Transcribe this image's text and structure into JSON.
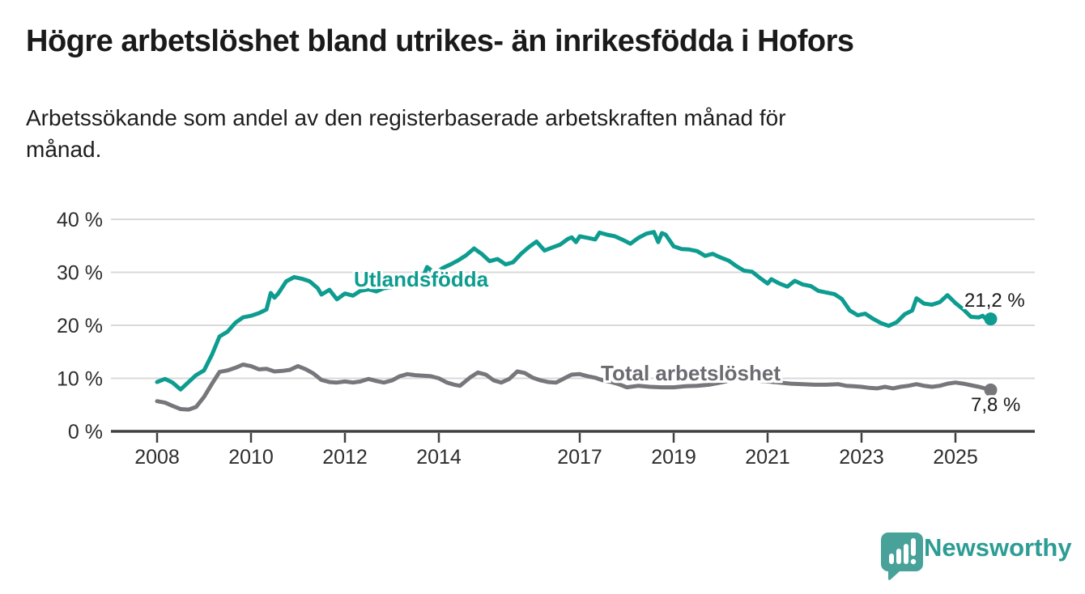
{
  "chart_data": {
    "type": "line",
    "title": "Högre arbetslöshet bland utrikes- än inrikesfödda i Hofors",
    "subtitle": "Arbetssökande som andel av den registerbaserade arbetskraften månad för\nmånad.",
    "x_tick_years": [
      2008,
      2010,
      2012,
      2014,
      2017,
      2019,
      2021,
      2023,
      2025
    ],
    "x_tick_labels": [
      "2008",
      "2010",
      "2012",
      "2014",
      "2017",
      "2019",
      "2021",
      "2023",
      "2025"
    ],
    "y_tick_values": [
      0,
      10,
      20,
      30,
      40
    ],
    "y_tick_labels": [
      "0 %",
      "10 %",
      "20 %",
      "30 %",
      "40 %"
    ],
    "ylim": [
      0,
      40
    ],
    "x_range": [
      2008.0,
      2025.75
    ],
    "grid": true,
    "series": [
      {
        "name": "Total arbetslöshet",
        "color": "#77767b",
        "end_label": "7,8 %",
        "end_value": 7.8,
        "points": [
          [
            2008.0,
            5.7
          ],
          [
            2008.17,
            5.4
          ],
          [
            2008.33,
            4.8
          ],
          [
            2008.5,
            4.2
          ],
          [
            2008.67,
            4.1
          ],
          [
            2008.83,
            4.6
          ],
          [
            2009.0,
            6.5
          ],
          [
            2009.17,
            9.0
          ],
          [
            2009.33,
            11.2
          ],
          [
            2009.5,
            11.5
          ],
          [
            2009.67,
            12.0
          ],
          [
            2009.83,
            12.6
          ],
          [
            2010.0,
            12.3
          ],
          [
            2010.17,
            11.7
          ],
          [
            2010.33,
            11.8
          ],
          [
            2010.5,
            11.3
          ],
          [
            2010.67,
            11.4
          ],
          [
            2010.83,
            11.6
          ],
          [
            2011.0,
            12.3
          ],
          [
            2011.17,
            11.7
          ],
          [
            2011.33,
            10.9
          ],
          [
            2011.5,
            9.7
          ],
          [
            2011.67,
            9.3
          ],
          [
            2011.83,
            9.2
          ],
          [
            2012.0,
            9.4
          ],
          [
            2012.17,
            9.2
          ],
          [
            2012.33,
            9.4
          ],
          [
            2012.5,
            9.9
          ],
          [
            2012.67,
            9.5
          ],
          [
            2012.83,
            9.2
          ],
          [
            2013.0,
            9.6
          ],
          [
            2013.17,
            10.4
          ],
          [
            2013.33,
            10.8
          ],
          [
            2013.5,
            10.6
          ],
          [
            2013.67,
            10.5
          ],
          [
            2013.83,
            10.4
          ],
          [
            2014.0,
            10.0
          ],
          [
            2014.17,
            9.2
          ],
          [
            2014.33,
            8.8
          ],
          [
            2014.45,
            8.6
          ],
          [
            2014.67,
            10.2
          ],
          [
            2014.83,
            11.1
          ],
          [
            2015.0,
            10.7
          ],
          [
            2015.17,
            9.6
          ],
          [
            2015.33,
            9.2
          ],
          [
            2015.5,
            9.9
          ],
          [
            2015.67,
            11.3
          ],
          [
            2015.83,
            11.0
          ],
          [
            2016.0,
            10.1
          ],
          [
            2016.17,
            9.6
          ],
          [
            2016.33,
            9.3
          ],
          [
            2016.5,
            9.2
          ],
          [
            2016.67,
            10.0
          ],
          [
            2016.83,
            10.7
          ],
          [
            2017.0,
            10.8
          ],
          [
            2017.17,
            10.4
          ],
          [
            2017.33,
            10.1
          ],
          [
            2017.5,
            9.6
          ],
          [
            2017.67,
            9.3
          ],
          [
            2017.83,
            8.9
          ],
          [
            2018.0,
            8.3
          ],
          [
            2018.25,
            8.6
          ],
          [
            2018.5,
            8.4
          ],
          [
            2018.75,
            8.3
          ],
          [
            2019.0,
            8.3
          ],
          [
            2019.25,
            8.5
          ],
          [
            2019.5,
            8.6
          ],
          [
            2019.75,
            8.8
          ],
          [
            2020.0,
            9.2
          ],
          [
            2020.25,
            9.7
          ],
          [
            2020.5,
            9.8
          ],
          [
            2020.75,
            9.6
          ],
          [
            2021.0,
            9.4
          ],
          [
            2021.25,
            9.2
          ],
          [
            2021.5,
            9.0
          ],
          [
            2021.75,
            8.9
          ],
          [
            2022.0,
            8.8
          ],
          [
            2022.25,
            8.8
          ],
          [
            2022.5,
            8.9
          ],
          [
            2022.67,
            8.6
          ],
          [
            2022.83,
            8.5
          ],
          [
            2023.0,
            8.4
          ],
          [
            2023.17,
            8.2
          ],
          [
            2023.33,
            8.1
          ],
          [
            2023.5,
            8.4
          ],
          [
            2023.67,
            8.1
          ],
          [
            2023.83,
            8.4
          ],
          [
            2024.0,
            8.6
          ],
          [
            2024.17,
            8.9
          ],
          [
            2024.33,
            8.6
          ],
          [
            2024.5,
            8.4
          ],
          [
            2024.67,
            8.6
          ],
          [
            2024.83,
            9.0
          ],
          [
            2025.0,
            9.2
          ],
          [
            2025.17,
            9.0
          ],
          [
            2025.33,
            8.7
          ],
          [
            2025.5,
            8.4
          ],
          [
            2025.67,
            8.0
          ],
          [
            2025.75,
            7.8
          ]
        ]
      },
      {
        "name": "Utlandsfödda",
        "color": "#0d9c8f",
        "end_label": "21,2 %",
        "end_value": 21.2,
        "points": [
          [
            2008.0,
            9.3
          ],
          [
            2008.17,
            9.9
          ],
          [
            2008.33,
            9.2
          ],
          [
            2008.5,
            7.9
          ],
          [
            2008.67,
            9.3
          ],
          [
            2008.83,
            10.6
          ],
          [
            2009.0,
            11.5
          ],
          [
            2009.17,
            14.5
          ],
          [
            2009.33,
            17.9
          ],
          [
            2009.5,
            18.8
          ],
          [
            2009.67,
            20.5
          ],
          [
            2009.83,
            21.5
          ],
          [
            2010.0,
            21.8
          ],
          [
            2010.17,
            22.3
          ],
          [
            2010.33,
            23.0
          ],
          [
            2010.42,
            26.1
          ],
          [
            2010.5,
            25.2
          ],
          [
            2010.58,
            26.0
          ],
          [
            2010.75,
            28.3
          ],
          [
            2010.92,
            29.1
          ],
          [
            2011.08,
            28.8
          ],
          [
            2011.25,
            28.3
          ],
          [
            2011.42,
            27.0
          ],
          [
            2011.5,
            25.8
          ],
          [
            2011.67,
            26.7
          ],
          [
            2011.83,
            24.9
          ],
          [
            2012.0,
            26.0
          ],
          [
            2012.17,
            25.6
          ],
          [
            2012.33,
            26.5
          ],
          [
            2012.5,
            26.8
          ],
          [
            2012.67,
            26.4
          ],
          [
            2012.83,
            27.0
          ],
          [
            2013.0,
            27.2
          ],
          [
            2013.17,
            27.5
          ],
          [
            2013.33,
            27.8
          ],
          [
            2013.45,
            28.7
          ],
          [
            2013.58,
            27.4
          ],
          [
            2013.75,
            31.0
          ],
          [
            2013.92,
            29.8
          ],
          [
            2014.08,
            30.8
          ],
          [
            2014.25,
            31.5
          ],
          [
            2014.42,
            32.3
          ],
          [
            2014.58,
            33.2
          ],
          [
            2014.75,
            34.5
          ],
          [
            2014.92,
            33.4
          ],
          [
            2015.08,
            32.1
          ],
          [
            2015.25,
            32.5
          ],
          [
            2015.42,
            31.5
          ],
          [
            2015.58,
            31.9
          ],
          [
            2015.75,
            33.5
          ],
          [
            2015.92,
            34.8
          ],
          [
            2016.08,
            35.8
          ],
          [
            2016.25,
            34.1
          ],
          [
            2016.42,
            34.7
          ],
          [
            2016.58,
            35.2
          ],
          [
            2016.75,
            36.3
          ],
          [
            2016.83,
            36.6
          ],
          [
            2016.92,
            35.7
          ],
          [
            2017.0,
            36.8
          ],
          [
            2017.17,
            36.5
          ],
          [
            2017.33,
            36.2
          ],
          [
            2017.42,
            37.5
          ],
          [
            2017.58,
            37.1
          ],
          [
            2017.75,
            36.8
          ],
          [
            2017.92,
            36.1
          ],
          [
            2018.08,
            35.4
          ],
          [
            2018.25,
            36.5
          ],
          [
            2018.42,
            37.3
          ],
          [
            2018.58,
            37.6
          ],
          [
            2018.67,
            35.7
          ],
          [
            2018.75,
            37.4
          ],
          [
            2018.83,
            37.1
          ],
          [
            2019.0,
            34.9
          ],
          [
            2019.17,
            34.4
          ],
          [
            2019.33,
            34.3
          ],
          [
            2019.5,
            34.0
          ],
          [
            2019.67,
            33.1
          ],
          [
            2019.83,
            33.5
          ],
          [
            2020.0,
            32.8
          ],
          [
            2020.17,
            32.2
          ],
          [
            2020.33,
            31.2
          ],
          [
            2020.5,
            30.3
          ],
          [
            2020.67,
            30.1
          ],
          [
            2020.83,
            29.0
          ],
          [
            2021.0,
            27.9
          ],
          [
            2021.08,
            28.7
          ],
          [
            2021.25,
            27.9
          ],
          [
            2021.42,
            27.3
          ],
          [
            2021.58,
            28.4
          ],
          [
            2021.75,
            27.7
          ],
          [
            2021.92,
            27.4
          ],
          [
            2022.08,
            26.5
          ],
          [
            2022.25,
            26.2
          ],
          [
            2022.42,
            25.9
          ],
          [
            2022.58,
            25.0
          ],
          [
            2022.75,
            22.8
          ],
          [
            2022.92,
            21.9
          ],
          [
            2023.08,
            22.2
          ],
          [
            2023.25,
            21.2
          ],
          [
            2023.42,
            20.4
          ],
          [
            2023.58,
            19.9
          ],
          [
            2023.75,
            20.6
          ],
          [
            2023.92,
            22.1
          ],
          [
            2024.08,
            22.8
          ],
          [
            2024.17,
            25.1
          ],
          [
            2024.33,
            24.1
          ],
          [
            2024.5,
            23.9
          ],
          [
            2024.67,
            24.4
          ],
          [
            2024.83,
            25.7
          ],
          [
            2025.0,
            24.2
          ],
          [
            2025.17,
            23.0
          ],
          [
            2025.33,
            21.6
          ],
          [
            2025.5,
            21.5
          ],
          [
            2025.58,
            21.8
          ],
          [
            2025.67,
            21.0
          ],
          [
            2025.75,
            21.2
          ]
        ]
      }
    ]
  },
  "footer": {
    "brand": "Newsworthy",
    "brand_color": "#2d9d94",
    "logo_icon": "speech-bubble-bar-chart-icon"
  }
}
